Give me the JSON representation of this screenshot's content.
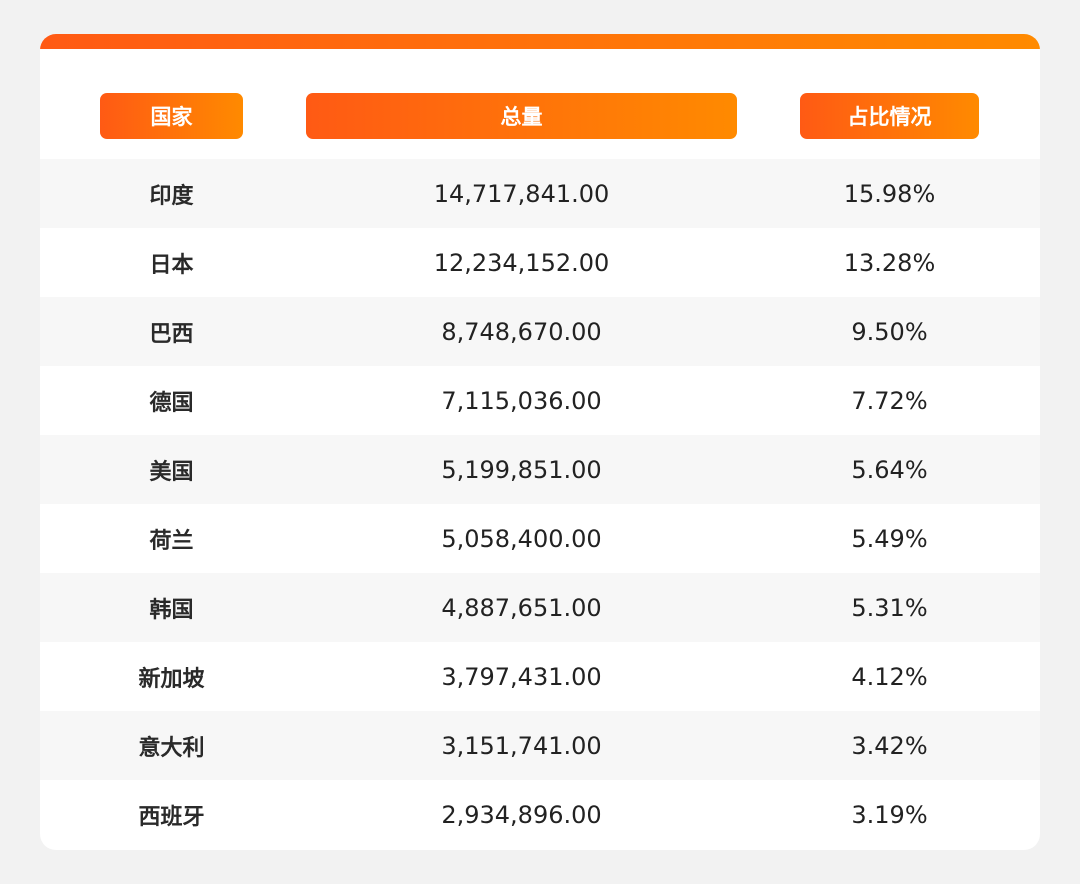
{
  "chart_data": {
    "type": "table",
    "columns": [
      "国家",
      "总量",
      "占比情况"
    ],
    "rows": [
      {
        "country": "印度",
        "total": "14,717,841.00",
        "share": "15.98%"
      },
      {
        "country": "日本",
        "total": "12,234,152.00",
        "share": "13.28%"
      },
      {
        "country": "巴西",
        "total": "8,748,670.00",
        "share": "9.50%"
      },
      {
        "country": "德国",
        "total": "7,115,036.00",
        "share": "7.72%"
      },
      {
        "country": "美国",
        "total": "5,199,851.00",
        "share": "5.64%"
      },
      {
        "country": "荷兰",
        "total": "5,058,400.00",
        "share": "5.49%"
      },
      {
        "country": "韩国",
        "total": "4,887,651.00",
        "share": "5.31%"
      },
      {
        "country": "新加坡",
        "total": "3,797,431.00",
        "share": "4.12%"
      },
      {
        "country": "意大利",
        "total": "3,151,741.00",
        "share": "3.42%"
      },
      {
        "country": "西班牙",
        "total": "2,934,896.00",
        "share": "3.19%"
      }
    ]
  },
  "colors": {
    "accent_start": "#ff5a14",
    "accent_end": "#ff8a00",
    "row_alt": "#f7f7f7",
    "text": "#222222"
  }
}
